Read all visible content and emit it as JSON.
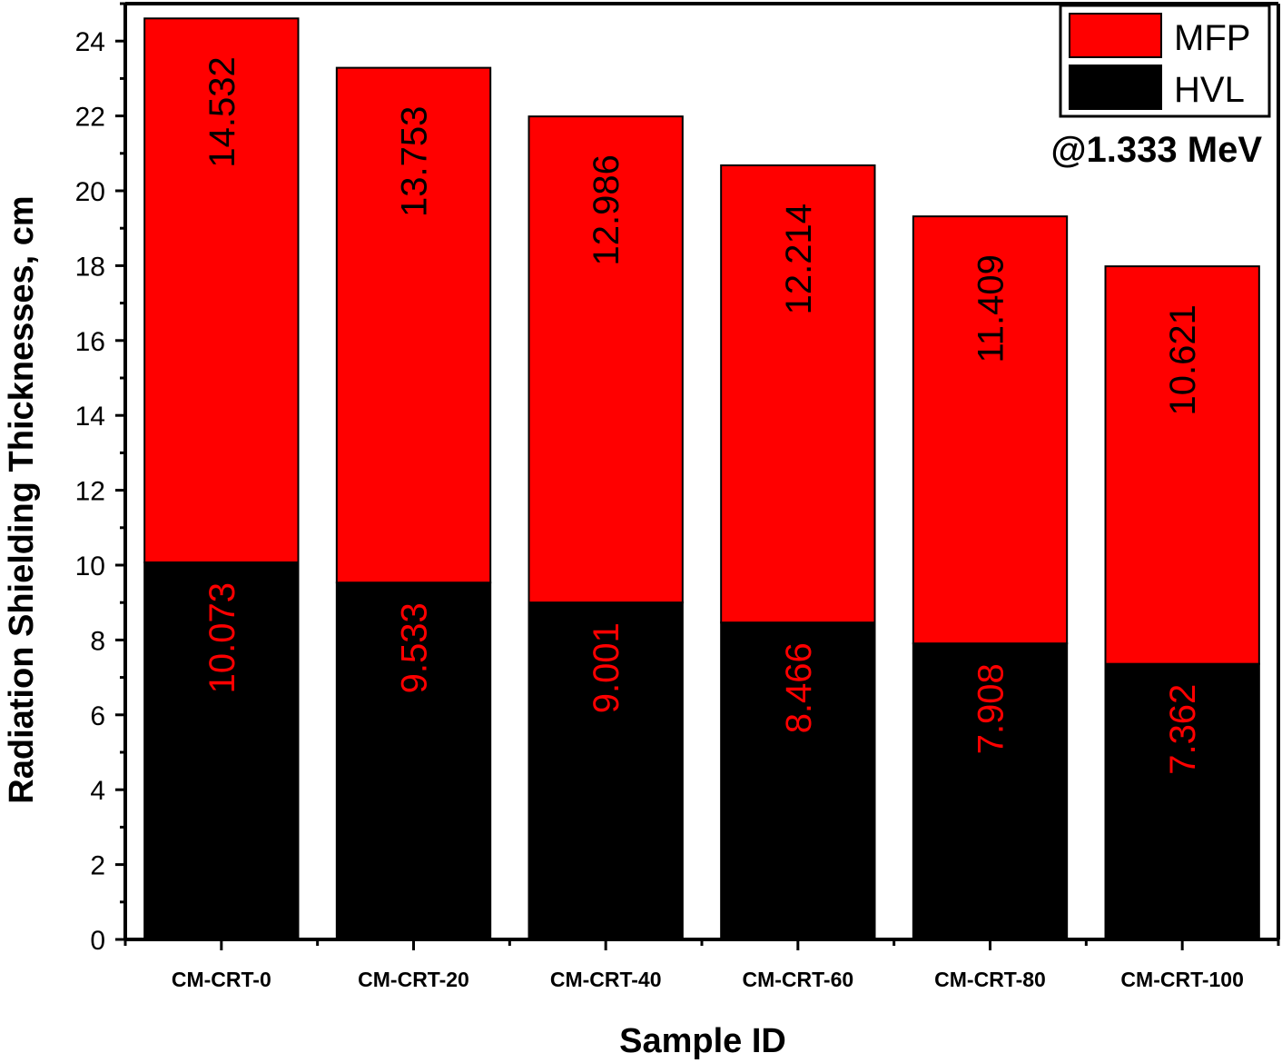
{
  "chart_data": {
    "type": "bar",
    "stacked": true,
    "categories": [
      "CM-CRT-0",
      "CM-CRT-20",
      "CM-CRT-40",
      "CM-CRT-60",
      "CM-CRT-80",
      "CM-CRT-100"
    ],
    "series": [
      {
        "name": "HVL",
        "color": "#000000",
        "label_color": "#ff0000",
        "values": [
          10.073,
          9.533,
          9.001,
          8.466,
          7.908,
          7.362
        ]
      },
      {
        "name": "MFP",
        "color": "#ff0000",
        "label_color": "#000000",
        "values": [
          14.532,
          13.753,
          12.986,
          12.214,
          11.409,
          10.621
        ]
      }
    ],
    "xlabel": "Sample ID",
    "ylabel": "Radiation Shielding Thicknesses, cm",
    "ylim": [
      0,
      25
    ],
    "yticks": [
      0,
      2,
      4,
      6,
      8,
      10,
      12,
      14,
      16,
      18,
      20,
      22,
      24
    ],
    "annotation": "@1.333 MeV",
    "legend_position": "top-right",
    "grid": false
  }
}
